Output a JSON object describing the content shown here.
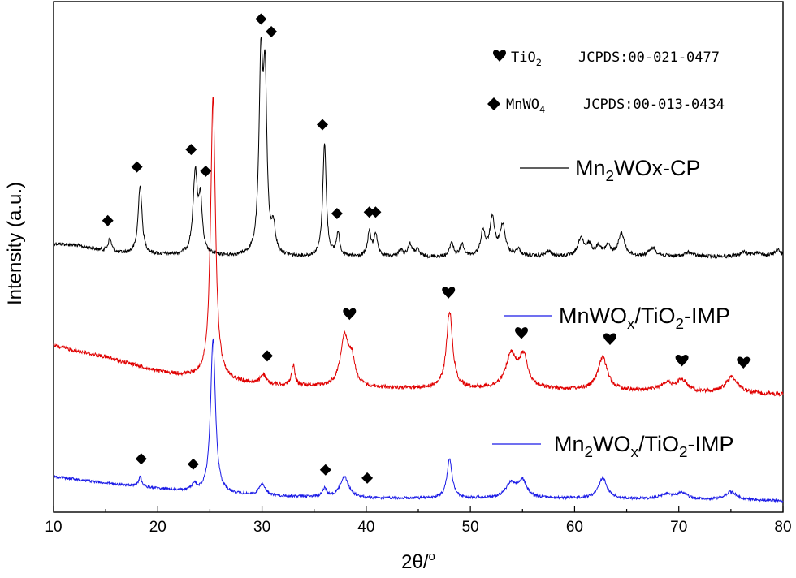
{
  "chart_data": {
    "type": "line",
    "xlabel": "2θ/°",
    "ylabel": "Intensity (a.u.)",
    "xlim": [
      10,
      80
    ],
    "x_ticks": [
      10,
      20,
      30,
      40,
      50,
      60,
      70,
      80
    ],
    "x_tick_labels": [
      "10",
      "20",
      "30",
      "40",
      "50",
      "60",
      "70",
      "80"
    ],
    "y_ticks_shown": false,
    "legend_position": "right",
    "references": [
      {
        "symbol": "heart",
        "phase": "TiO2",
        "phase_main": "TiO",
        "phase_sub": "2",
        "code": "JCPDS:00-021-0477"
      },
      {
        "symbol": "diamond",
        "phase": "MnWO4",
        "phase_main": "MnWO",
        "phase_sub": "4",
        "code": "JCPDS:00-013-0434"
      }
    ],
    "series": [
      {
        "name": "Mn2WOx-CP",
        "legend_parts": [
          {
            "t": "Mn"
          },
          {
            "t": "2",
            "sub": true
          },
          {
            "t": "WOx-CP"
          }
        ],
        "color": "#000000",
        "baseline": 322,
        "peaks": [
          [
            15.4,
            0.2,
            16
          ],
          [
            18.3,
            0.22,
            85
          ],
          [
            23.6,
            0.26,
            100
          ],
          [
            24.1,
            0.2,
            60
          ],
          [
            29.9,
            0.22,
            230
          ],
          [
            30.3,
            0.2,
            200
          ],
          [
            31.1,
            0.22,
            30
          ],
          [
            36.0,
            0.2,
            140
          ],
          [
            37.3,
            0.2,
            28
          ],
          [
            40.3,
            0.2,
            30
          ],
          [
            40.9,
            0.2,
            28
          ],
          [
            43.3,
            0.25,
            8
          ],
          [
            44.2,
            0.25,
            15
          ],
          [
            44.9,
            0.25,
            8
          ],
          [
            48.2,
            0.2,
            18
          ],
          [
            49.2,
            0.22,
            15
          ],
          [
            51.2,
            0.25,
            30
          ],
          [
            52.1,
            0.3,
            45
          ],
          [
            53.1,
            0.3,
            38
          ],
          [
            54.6,
            0.3,
            8
          ],
          [
            57.5,
            0.3,
            6
          ],
          [
            60.6,
            0.3,
            22
          ],
          [
            61.4,
            0.3,
            14
          ],
          [
            62.3,
            0.3,
            12
          ],
          [
            63.2,
            0.3,
            12
          ],
          [
            64.5,
            0.35,
            28
          ],
          [
            67.5,
            0.4,
            10
          ],
          [
            71.0,
            0.4,
            5
          ],
          [
            76.2,
            0.4,
            5
          ],
          [
            77.5,
            0.4,
            5
          ],
          [
            79.5,
            0.4,
            8
          ]
        ],
        "slope": [
          [
            10,
            -22
          ],
          [
            12,
            -20
          ],
          [
            16,
            -10
          ],
          [
            20,
            -8
          ],
          [
            30,
            -5
          ],
          [
            40,
            -5
          ],
          [
            60,
            -6
          ],
          [
            80,
            -6
          ]
        ],
        "noise": 2.2
      },
      {
        "name": "MnWOx/TiO2-IMP",
        "legend_parts": [
          {
            "t": "MnWO"
          },
          {
            "t": "x",
            "sub": true
          },
          {
            "t": "/TiO"
          },
          {
            "t": "2",
            "sub": true
          },
          {
            "t": "-IMP"
          }
        ],
        "color": "#e00000",
        "baseline": 488,
        "peaks": [
          [
            25.3,
            0.28,
            348
          ],
          [
            30.1,
            0.3,
            12
          ],
          [
            33.0,
            0.18,
            25
          ],
          [
            37.9,
            0.45,
            60
          ],
          [
            38.6,
            0.4,
            30
          ],
          [
            48.0,
            0.35,
            95
          ],
          [
            53.9,
            0.6,
            40
          ],
          [
            55.1,
            0.5,
            38
          ],
          [
            62.7,
            0.55,
            40
          ],
          [
            68.8,
            0.7,
            10
          ],
          [
            70.3,
            0.6,
            14
          ],
          [
            75.1,
            0.7,
            20
          ]
        ],
        "slope": [
          [
            10,
            -62
          ],
          [
            15,
            -48
          ],
          [
            20,
            -30
          ],
          [
            25,
            -20
          ],
          [
            30,
            -14
          ],
          [
            40,
            -10
          ],
          [
            60,
            -8
          ],
          [
            80,
            -2
          ]
        ],
        "noise": 2.4
      },
      {
        "name": "Mn2WOx/TiO2-IMP",
        "legend_parts": [
          {
            "t": "Mn"
          },
          {
            "t": "2",
            "sub": true
          },
          {
            "t": "WO"
          },
          {
            "t": "x",
            "sub": true
          },
          {
            "t": "/TiO"
          },
          {
            "t": "2",
            "sub": true
          },
          {
            "t": "-IMP"
          }
        ],
        "color": "#1a1ae6",
        "baseline": 617,
        "peaks": [
          [
            18.3,
            0.18,
            12
          ],
          [
            23.5,
            0.3,
            8
          ],
          [
            25.3,
            0.28,
            190
          ],
          [
            30.0,
            0.35,
            15
          ],
          [
            36.0,
            0.25,
            10
          ],
          [
            37.9,
            0.5,
            26
          ],
          [
            48.0,
            0.3,
            48
          ],
          [
            53.9,
            0.6,
            18
          ],
          [
            55.0,
            0.5,
            20
          ],
          [
            62.7,
            0.5,
            25
          ],
          [
            68.8,
            0.7,
            6
          ],
          [
            70.3,
            0.6,
            8
          ],
          [
            75.0,
            0.7,
            10
          ]
        ],
        "slope": [
          [
            10,
            -30
          ],
          [
            15,
            -22
          ],
          [
            20,
            -15
          ],
          [
            24,
            -10
          ],
          [
            30,
            -6
          ],
          [
            40,
            -3
          ],
          [
            60,
            -3
          ],
          [
            80,
            0
          ]
        ],
        "noise": 1.6
      }
    ],
    "marker_groups": [
      {
        "series": "Mn2WOx-CP",
        "symbol": "diamond",
        "x": [
          15.2,
          18.0,
          23.2,
          24.6,
          29.9,
          30.9,
          35.8,
          37.2,
          40.3,
          40.9
        ]
      },
      {
        "series": "MnWOx/TiO2-IMP",
        "symbol": "diamond",
        "x": [
          30.5
        ]
      },
      {
        "series": "MnWOx/TiO2-IMP",
        "symbol": "heart",
        "x": [
          38.4,
          47.9,
          54.9,
          63.4,
          70.3,
          76.2
        ]
      },
      {
        "series": "Mn2WOx/TiO2-IMP",
        "symbol": "diamond",
        "x": [
          18.4,
          23.4,
          36.1,
          40.1
        ]
      }
    ]
  }
}
